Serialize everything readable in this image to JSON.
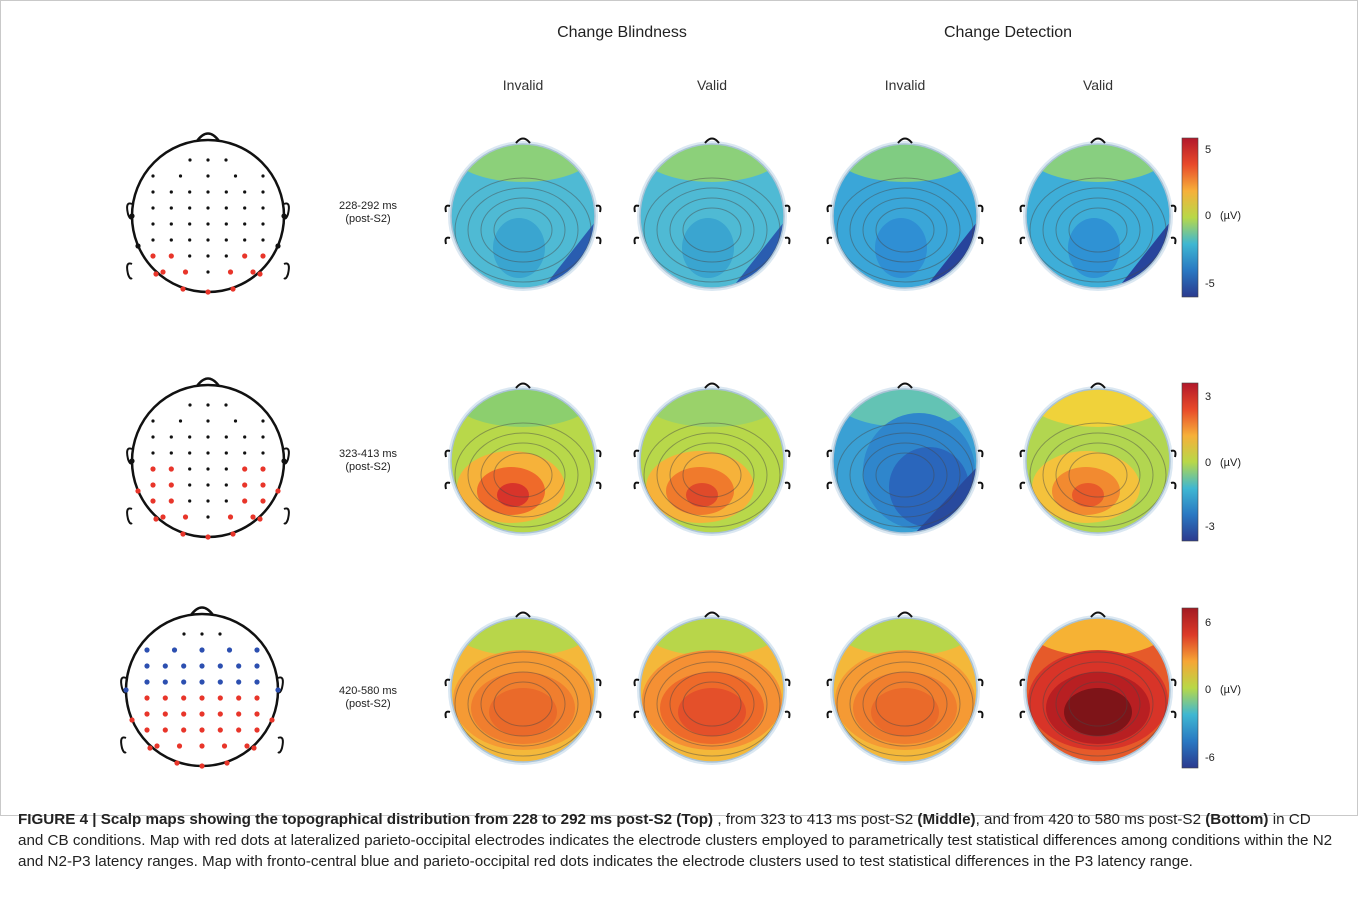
{
  "headers": {
    "blindness": "Change Blindness",
    "detection": "Change Detection"
  },
  "subheaders": [
    "Invalid",
    "Valid",
    "Invalid",
    "Valid"
  ],
  "rows": [
    {
      "time": "228-292 ms",
      "post": "(post-S2)",
      "colorbar": {
        "max": "5",
        "mid": "0",
        "unit": "(µV)",
        "min": "-5"
      },
      "maps": [
        {
          "base": "#4fbad4",
          "hot": "#3aa5d0",
          "hot2": "#2f8dd0",
          "dark": "#2a5db0",
          "top": "#8cd07a"
        },
        {
          "base": "#4fbad4",
          "hot": "#3aa5d0",
          "hot2": "#2f8dd0",
          "dark": "#2a5db0",
          "top": "#8cd07a"
        },
        {
          "base": "#3aa6d8",
          "hot": "#2f8fd4",
          "hot2": "#2a72c4",
          "dark": "#27449c",
          "top": "#80cc82"
        },
        {
          "base": "#3eaed8",
          "hot": "#2f92d4",
          "hot2": "#2a72c4",
          "dark": "#27449c",
          "top": "#88cf80"
        }
      ]
    },
    {
      "time": "323-413 ms",
      "post": "(post-S2)",
      "colorbar": {
        "max": "3",
        "mid": "0",
        "unit": "(µV)",
        "min": "-3"
      },
      "maps": [
        {
          "base": "#b8d84a",
          "hot": "#f6b23a",
          "hot2": "#ef6a2a",
          "dark": "#d8342a",
          "top": "#8ccf6e"
        },
        {
          "base": "#b8d84a",
          "hot": "#f6b23a",
          "hot2": "#f07a2c",
          "dark": "#e04a2a",
          "top": "#9ad26a"
        },
        {
          "base": "#3aa0d4",
          "hot": "#2f86cc",
          "hot2": "#2a66bc",
          "dark": "#284a9e",
          "top": "#63c3b4"
        },
        {
          "base": "#b2d650",
          "hot": "#f4c23c",
          "hot2": "#f28a30",
          "dark": "#e85a2a",
          "top": "#f0d23a"
        }
      ]
    },
    {
      "time": "420-580 ms",
      "post": "(post-S2)",
      "colorbar": {
        "max": "6",
        "mid": "0",
        "unit": "(µV)",
        "min": "-6"
      },
      "maps": [
        {
          "base": "#f4b83a",
          "hot": "#f59a34",
          "hot2": "#f07e2e",
          "dark": "#ea6a2a",
          "top": "#b8d64a"
        },
        {
          "base": "#f4b83a",
          "hot": "#f59034",
          "hot2": "#ee6a2a",
          "dark": "#e4502a",
          "top": "#b8d64a"
        },
        {
          "base": "#f4b83a",
          "hot": "#f59a34",
          "hot2": "#f07e2e",
          "dark": "#ea6a2a",
          "top": "#b8d64a"
        },
        {
          "base": "#e65a2a",
          "hot": "#d83428",
          "hot2": "#b81f22",
          "dark": "#7e1418",
          "top": "#f6b234"
        }
      ]
    }
  ],
  "caption": {
    "lead": "FIGURE 4 | Scalp maps showing the topographical distribution from 228 to 292 ms post-S2 (Top)",
    "p1": " , from 323 to 413 ms post-S2 ",
    "b1": "(Middle)",
    "p2": ", and from 420 to 580 ms post-S2 ",
    "b2": "(Bottom)",
    "p3": " in CD and CB conditions. Map with red dots at lateralized parieto-occipital electrodes indicates the electrode clusters employed to parametrically test statistical differences among conditions within the N2 and N2-P3 latency ranges. Map with fronto-central blue and parieto-occipital red dots indicates the electrode clusters used to test statistical differences in the P3 latency range."
  },
  "colors": {
    "red_dot": "#e8352a",
    "blue_dot": "#2c4fb0",
    "black_dot": "#111111"
  }
}
